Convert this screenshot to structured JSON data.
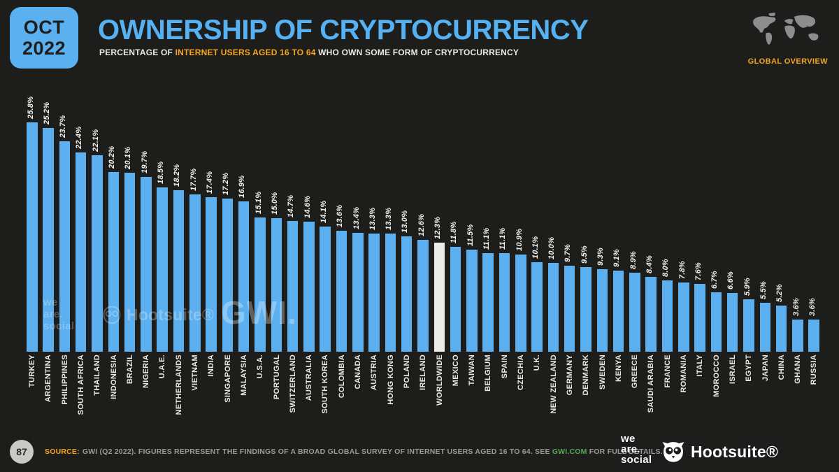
{
  "header": {
    "date_badge": {
      "line1": "OCT",
      "line2": "2022"
    },
    "title": "OWNERSHIP OF CRYPTOCURRENCY",
    "subtitle_prefix": "PERCENTAGE OF ",
    "subtitle_highlight": "INTERNET USERS AGED 16 TO 64",
    "subtitle_suffix": " WHO OWN SOME FORM OF CRYPTOCURRENCY",
    "overview_label": "GLOBAL OVERVIEW"
  },
  "chart_data": {
    "type": "bar",
    "title": "OWNERSHIP OF CRYPTOCURRENCY",
    "subtitle": "PERCENTAGE OF INTERNET USERS AGED 16 TO 64 WHO OWN SOME FORM OF CRYPTOCURRENCY",
    "unit": "%",
    "ylim": [
      0,
      26
    ],
    "grid": false,
    "legend": false,
    "highlight_category": "WORLDWIDE",
    "bar_color": "#5cb0ef",
    "highlight_color": "#ebebe7",
    "categories": [
      "TURKEY",
      "ARGENTINA",
      "PHILIPPINES",
      "SOUTH AFRICA",
      "THAILAND",
      "INDONESIA",
      "BRAZIL",
      "NIGERIA",
      "U.A.E.",
      "NETHERLANDS",
      "VIETNAM",
      "INDIA",
      "SINGAPORE",
      "MALAYSIA",
      "U.S.A.",
      "PORTUGAL",
      "SWITZERLAND",
      "AUSTRALIA",
      "SOUTH KOREA",
      "COLOMBIA",
      "CANADA",
      "AUSTRIA",
      "HONG KONG",
      "POLAND",
      "IRELAND",
      "WORLDWIDE",
      "MEXICO",
      "TAIWAN",
      "BELGIUM",
      "SPAIN",
      "CZECHIA",
      "U.K.",
      "NEW ZEALAND",
      "GERMANY",
      "DENMARK",
      "SWEDEN",
      "KENYA",
      "GREECE",
      "SAUDI ARABIA",
      "FRANCE",
      "ROMANIA",
      "ITALY",
      "MOROCCO",
      "ISRAEL",
      "EGYPT",
      "JAPAN",
      "CHINA",
      "GHANA",
      "RUSSIA"
    ],
    "values": [
      25.8,
      25.2,
      23.7,
      22.4,
      22.1,
      20.2,
      20.1,
      19.7,
      18.5,
      18.2,
      17.7,
      17.4,
      17.2,
      16.9,
      15.1,
      15.0,
      14.7,
      14.6,
      14.1,
      13.6,
      13.4,
      13.3,
      13.3,
      13.0,
      12.6,
      12.3,
      11.8,
      11.5,
      11.1,
      11.1,
      10.9,
      10.1,
      10.0,
      9.7,
      9.5,
      9.3,
      9.1,
      8.9,
      8.4,
      8.0,
      7.8,
      7.6,
      6.7,
      6.6,
      5.9,
      5.5,
      5.2,
      3.6,
      3.6
    ]
  },
  "watermarks": {
    "wearesocial": [
      "we",
      "are.",
      "social"
    ],
    "hootsuite": "Hootsuite®",
    "gwi": "GWI."
  },
  "footer": {
    "page_number": "87",
    "source_label": "SOURCE:",
    "source_pre": "GWI (Q2 2022). FIGURES REPRESENT THE FINDINGS OF A BROAD GLOBAL SURVEY OF INTERNET USERS AGED 16 TO 64. SEE ",
    "source_link": "GWI.COM",
    "source_post": " FOR FULL DETAILS.",
    "wearesocial_logo": [
      "we",
      "are.",
      "social"
    ],
    "hootsuite_logo": "Hootsuite®"
  },
  "colors": {
    "background": "#1d1d1b",
    "accent_blue": "#5cb0ef",
    "title_blue": "#55b1f2",
    "accent_orange": "#f5a71f",
    "link_green": "#55a855",
    "highlight_bar": "#ebebe7",
    "text_gray": "#9a9a98"
  }
}
